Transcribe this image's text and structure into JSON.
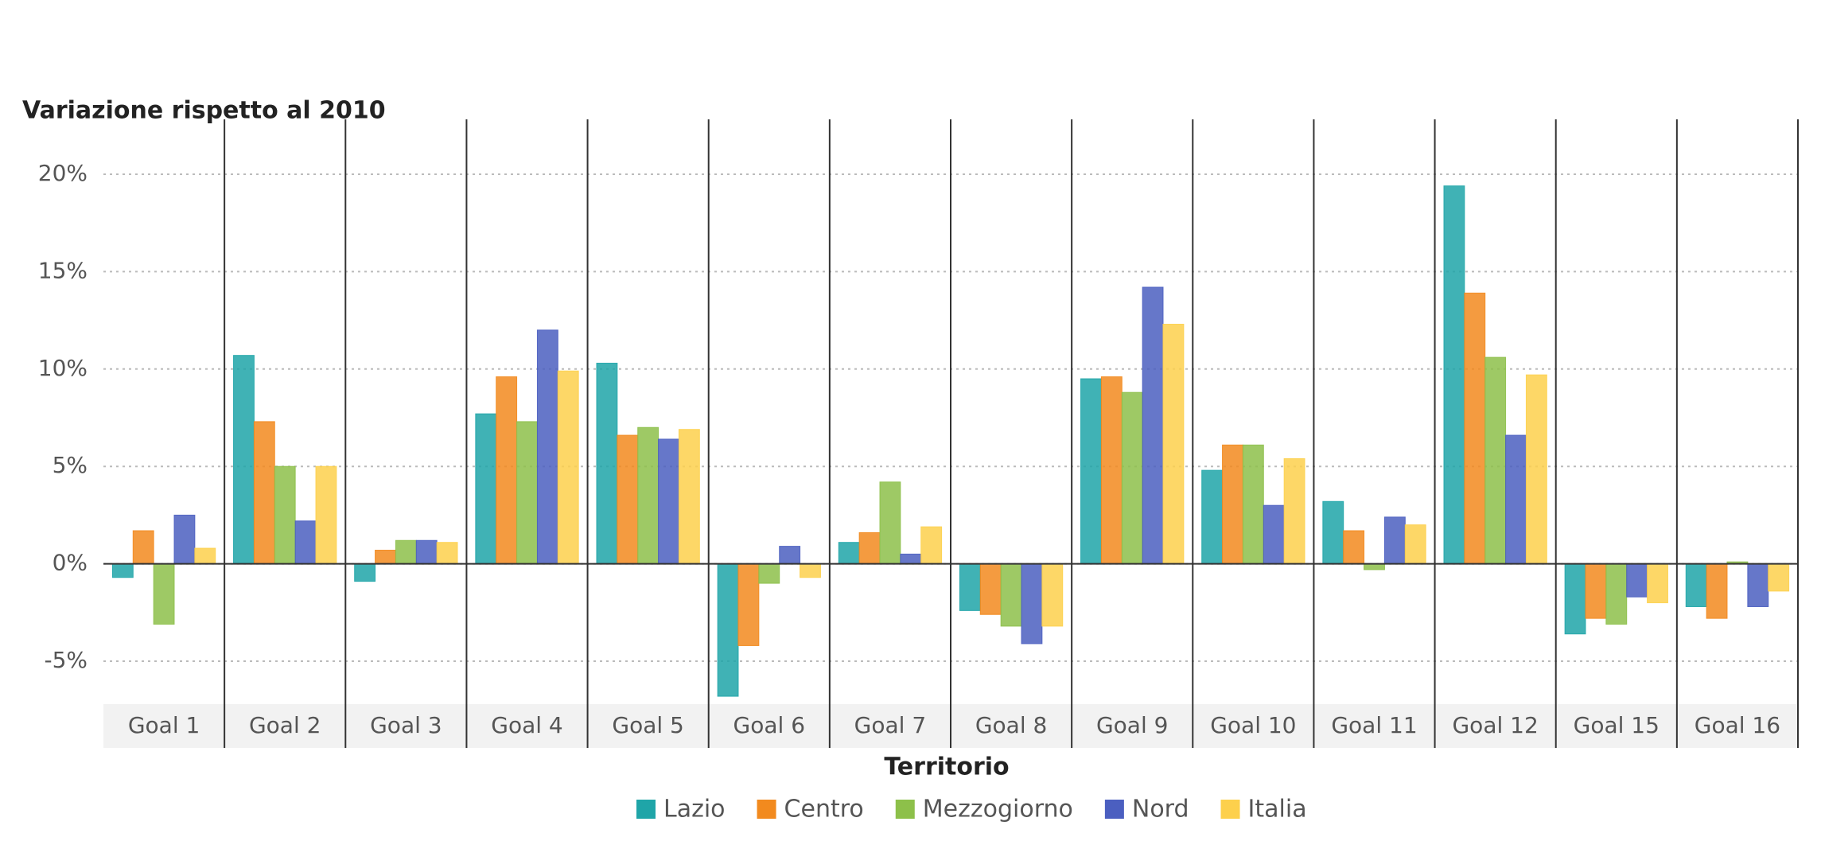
{
  "chart_data": {
    "type": "bar",
    "title": "Variazione rispetto al 2010",
    "legend_title": "Territorio",
    "categories": [
      "Goal 1",
      "Goal 2",
      "Goal 3",
      "Goal 4",
      "Goal 5",
      "Goal 6",
      "Goal 7",
      "Goal 8",
      "Goal 9",
      "Goal 10",
      "Goal 11",
      "Goal 12",
      "Goal 15",
      "Goal 16"
    ],
    "series": [
      {
        "name": "Lazio",
        "color": "#1fa5a8",
        "values": [
          -0.7,
          10.7,
          -0.9,
          7.7,
          10.3,
          -6.8,
          1.1,
          -2.4,
          9.5,
          4.8,
          3.2,
          19.4,
          -3.6,
          -2.2
        ]
      },
      {
        "name": "Centro",
        "color": "#f28a1e",
        "values": [
          1.7,
          7.3,
          0.7,
          9.6,
          6.6,
          -4.2,
          1.6,
          -2.6,
          9.6,
          6.1,
          1.7,
          13.9,
          -2.8,
          -2.8
        ]
      },
      {
        "name": "Mezzogiorno",
        "color": "#8dc04a",
        "values": [
          -3.1,
          5.0,
          1.2,
          7.3,
          7.0,
          -1.0,
          4.2,
          -3.2,
          8.8,
          6.1,
          -0.3,
          10.6,
          -3.1,
          0.1
        ]
      },
      {
        "name": "Nord",
        "color": "#4b5fc0",
        "values": [
          2.5,
          2.2,
          1.2,
          12.0,
          6.4,
          0.9,
          0.5,
          -4.1,
          14.2,
          3.0,
          2.4,
          6.6,
          -1.7,
          -2.2
        ]
      },
      {
        "name": "Italia",
        "color": "#fdd04c",
        "values": [
          0.8,
          5.0,
          1.1,
          9.9,
          6.9,
          -0.7,
          1.9,
          -3.2,
          12.3,
          5.4,
          2.0,
          9.7,
          -2.0,
          -1.4
        ]
      }
    ],
    "ylim": [
      -7,
      22
    ],
    "yticks": [
      {
        "value": -5,
        "label": "-5%"
      },
      {
        "value": 0,
        "label": "0%"
      },
      {
        "value": 5,
        "label": "5%"
      },
      {
        "value": 10,
        "label": "10%"
      },
      {
        "value": 15,
        "label": "15%"
      },
      {
        "value": 20,
        "label": "20%"
      }
    ],
    "grid": true
  }
}
